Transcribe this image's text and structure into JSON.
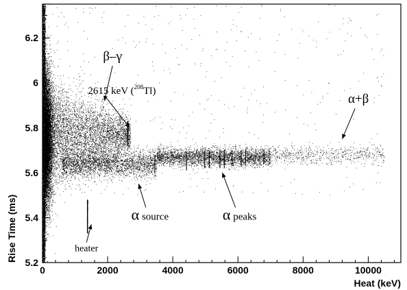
{
  "chart_data": {
    "type": "scatter",
    "xlabel": "Heat (keV)",
    "ylabel": "Rise Time (ms)",
    "xlim": [
      0,
      11000
    ],
    "ylim": [
      5.2,
      6.35
    ],
    "x_ticks": [
      0,
      2000,
      4000,
      6000,
      8000,
      10000
    ],
    "y_ticks": [
      5.2,
      5.4,
      5.6,
      5.8,
      6.0,
      6.2
    ],
    "x_tick_labels": [
      "0",
      "2000",
      "4000",
      "6000",
      "8000",
      "10000"
    ],
    "y_tick_labels": [
      "5.2",
      "5.4",
      "5.6",
      "5.8",
      "6",
      "6.2"
    ],
    "grid": false,
    "populations": [
      {
        "name": "β–γ",
        "x_range": [
          0,
          2700
        ],
        "rise_time_center": 5.77,
        "rise_time_spread": 0.035
      },
      {
        "name": "α source",
        "x_range": [
          600,
          3500
        ],
        "rise_time_center": 5.64,
        "rise_time_spread": 0.03
      },
      {
        "name": "α peaks",
        "x_range": [
          3500,
          7000
        ],
        "rise_time_center": 5.67,
        "rise_time_spread": 0.02
      },
      {
        "name": "α+β",
        "x_range": [
          7000,
          10500
        ],
        "rise_time_center": 5.68,
        "rise_time_spread": 0.02
      },
      {
        "name": "heater",
        "x": 1380,
        "rise_time_range": [
          5.33,
          5.48
        ]
      },
      {
        "name": "2615 keV (208Tl)",
        "x": 2615,
        "rise_time_range": [
          5.72,
          5.83
        ]
      }
    ],
    "alpha_peak_lines": [
      {
        "x": 3450,
        "y": [
          5.6,
          5.68
        ]
      },
      {
        "x": 4420,
        "y": [
          5.61,
          5.69
        ]
      },
      {
        "x": 4980,
        "y": [
          5.62,
          5.7
        ]
      },
      {
        "x": 5120,
        "y": [
          5.62,
          5.7
        ]
      },
      {
        "x": 5450,
        "y": [
          5.62,
          5.7
        ]
      },
      {
        "x": 5580,
        "y": [
          5.62,
          5.7
        ]
      },
      {
        "x": 5820,
        "y": [
          5.63,
          5.7
        ]
      },
      {
        "x": 6100,
        "y": [
          5.63,
          5.7
        ]
      },
      {
        "x": 6230,
        "y": [
          5.63,
          5.7
        ]
      },
      {
        "x": 6800,
        "y": [
          5.64,
          5.7
        ]
      }
    ],
    "annotations": [
      {
        "id": "bg",
        "text": "β–γ",
        "text_at": [
          2150,
          6.1
        ],
        "arrow_to": [
          1900,
          5.92
        ]
      },
      {
        "id": "tl",
        "text_main": "2615 keV (",
        "text_sup": "208",
        "text_after": "Tl)",
        "text_at": [
          3480,
          5.95
        ],
        "arrow_to": [
          2680,
          5.8
        ]
      },
      {
        "id": "ab",
        "text": "α+β",
        "text_at": [
          9700,
          5.91
        ],
        "arrow_to": [
          9200,
          5.75
        ]
      },
      {
        "id": "as",
        "text_alpha": "α",
        "text_rest": " source",
        "text_at": [
          3300,
          5.39
        ],
        "arrow_to": [
          2950,
          5.55
        ]
      },
      {
        "id": "ap",
        "text_alpha": "α",
        "text_rest": " peaks",
        "text_at": [
          6050,
          5.39
        ],
        "arrow_to": [
          5520,
          5.6
        ]
      },
      {
        "id": "ht",
        "text": "heater",
        "text_at": [
          1350,
          5.25
        ],
        "arrow_to": [
          1500,
          5.37
        ]
      }
    ]
  }
}
